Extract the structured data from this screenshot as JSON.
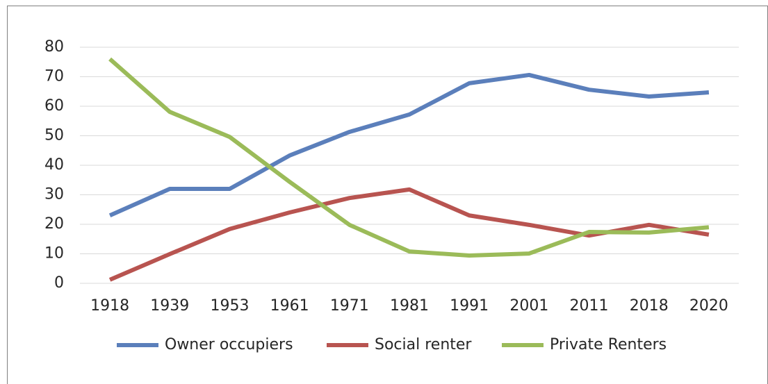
{
  "chart_data": {
    "type": "line",
    "categories": [
      "1918",
      "1939",
      "1953",
      "1961",
      "1971",
      "1981",
      "1991",
      "2001",
      "2011",
      "2018",
      "2020"
    ],
    "series": [
      {
        "name": "Owner occupiers",
        "color": "#5b7fbb",
        "values": [
          23,
          32,
          32,
          43.3,
          51.3,
          57.2,
          67.8,
          70.6,
          65.6,
          63.3,
          64.7
        ]
      },
      {
        "name": "Social renter",
        "color": "#b85450",
        "values": [
          1.2,
          9.9,
          18.4,
          24,
          28.9,
          31.8,
          23,
          19.8,
          16.2,
          19.8,
          16.5
        ]
      },
      {
        "name": "Private Renters",
        "color": "#9bbb59",
        "values": [
          76,
          58.1,
          49.6,
          34.4,
          19.8,
          10.8,
          9.4,
          10.1,
          17.4,
          17.2,
          19
        ]
      }
    ],
    "ylim": [
      0,
      80
    ],
    "yticks": [
      0,
      10,
      20,
      30,
      40,
      50,
      60,
      70,
      80
    ],
    "grid": true,
    "legend": "bottom"
  }
}
